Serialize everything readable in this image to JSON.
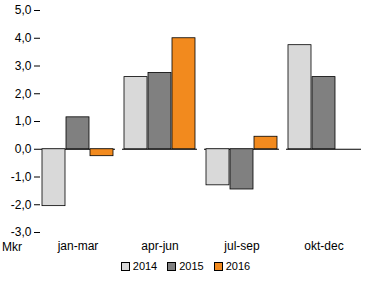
{
  "chart_data": {
    "type": "bar",
    "y_label": "Mkr",
    "categories": [
      "jan-mar",
      "apr-jun",
      "jul-sep",
      "okt-dec"
    ],
    "series": [
      {
        "name": "2014",
        "color": "#d9d9d9",
        "values": [
          -2.05,
          2.6,
          -1.3,
          3.75
        ]
      },
      {
        "name": "2015",
        "color": "#808080",
        "values": [
          1.15,
          2.75,
          -1.45,
          2.6
        ]
      },
      {
        "name": "2016",
        "color": "#f28a1e",
        "values": [
          -0.25,
          4.0,
          0.45,
          null
        ]
      }
    ],
    "ylim": [
      -3,
      5
    ],
    "yticks": [
      {
        "value": -3,
        "label": "-3,0"
      },
      {
        "value": -2,
        "label": "-2,0"
      },
      {
        "value": -1,
        "label": "-1,0"
      },
      {
        "value": 0,
        "label": "0,0"
      },
      {
        "value": 1,
        "label": "1,0"
      },
      {
        "value": 2,
        "label": "2,0"
      },
      {
        "value": 3,
        "label": "3,0"
      },
      {
        "value": 4,
        "label": "4,0"
      },
      {
        "value": 5,
        "label": "5,0"
      }
    ],
    "grid": false,
    "legend": "bottom"
  }
}
